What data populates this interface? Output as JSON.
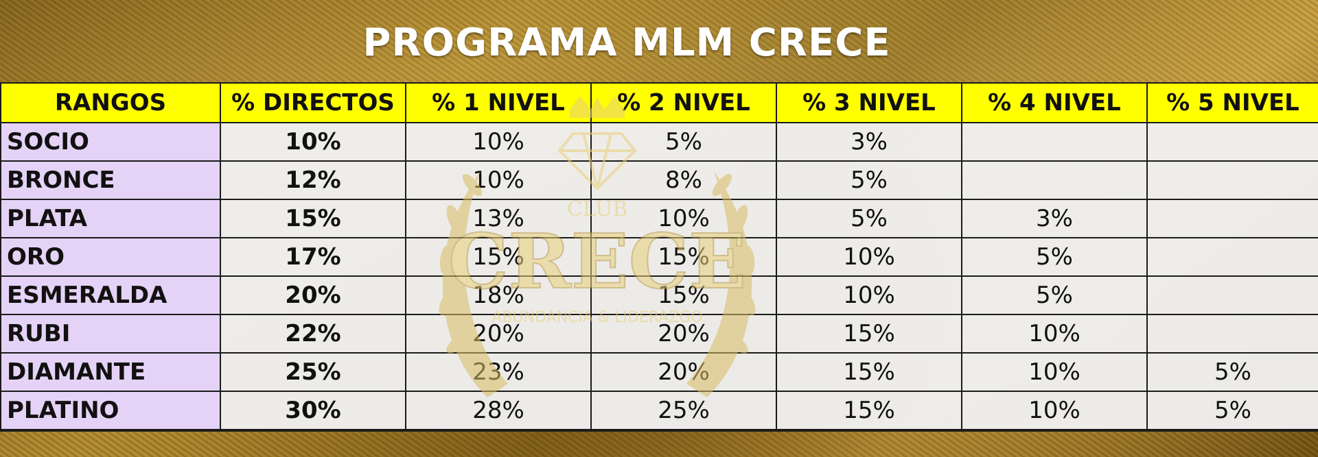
{
  "title": "PROGRAMA MLM CRECE",
  "columns": [
    "RANGOS",
    "% DIRECTOS",
    "% 1 NIVEL",
    "% 2 NIVEL",
    "% 3 NIVEL",
    "% 4 NIVEL",
    "% 5 NIVEL"
  ],
  "rows": [
    {
      "rank": "SOCIO",
      "values": [
        "10%",
        "10%",
        "5%",
        "3%",
        "",
        ""
      ]
    },
    {
      "rank": "BRONCE",
      "values": [
        "12%",
        "10%",
        "8%",
        "5%",
        "",
        ""
      ]
    },
    {
      "rank": "PLATA",
      "values": [
        "15%",
        "13%",
        "10%",
        "5%",
        "3%",
        ""
      ]
    },
    {
      "rank": "ORO",
      "values": [
        "17%",
        "15%",
        "15%",
        "10%",
        "5%",
        ""
      ]
    },
    {
      "rank": "ESMERALDA",
      "values": [
        "20%",
        "18%",
        "15%",
        "10%",
        "5%",
        ""
      ]
    },
    {
      "rank": "RUBI",
      "values": [
        "22%",
        "20%",
        "20%",
        "15%",
        "10%",
        ""
      ]
    },
    {
      "rank": "DIAMANTE",
      "values": [
        "25%",
        "23%",
        "20%",
        "15%",
        "10%",
        "5%"
      ]
    },
    {
      "rank": "PLATINO",
      "values": [
        "30%",
        "28%",
        "25%",
        "15%",
        "10%",
        "5%"
      ]
    }
  ],
  "watermark": {
    "line1": "CLUB",
    "line2": "CRECE",
    "line3": "ABUNDANCIA & LIDERAZGO",
    "icons": [
      "crown-icon",
      "diamond-icon",
      "laurel-wreath-icon"
    ],
    "color": "#e8cf7a"
  },
  "colors": {
    "header_bg": "#ffff00",
    "rank_bg": "#e5d3f7",
    "cell_bg": "#f0f0f0",
    "title_color": "#ffffff"
  }
}
